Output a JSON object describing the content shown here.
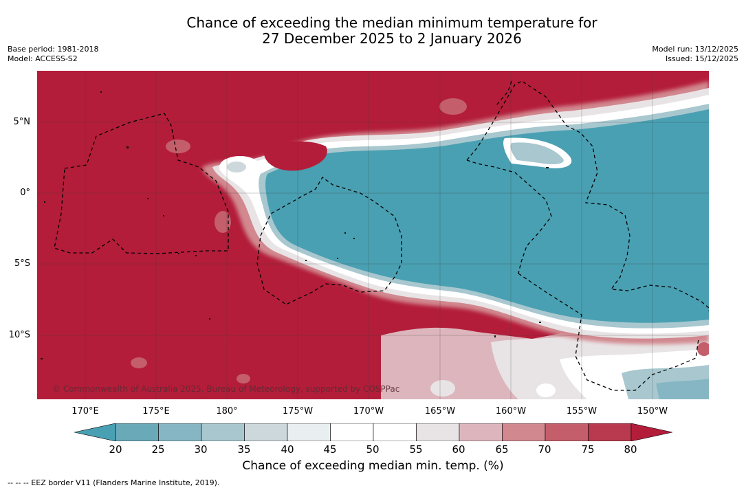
{
  "header": {
    "title_line1": "Chance of exceeding the median minimum temperature for",
    "title_line2": "27 December 2025 to 2 January 2026",
    "base_period": "Base period: 1981-2018",
    "model": "Model: ACCESS-S2",
    "model_run": "Model run: 13/12/2025",
    "issued": "Issued: 15/12/2025"
  },
  "map": {
    "lat_labels": [
      "5°N",
      "0°",
      "5°S",
      "10°S"
    ],
    "lon_labels": [
      "170°E",
      "175°E",
      "180°",
      "175°W",
      "170°W",
      "165°W",
      "160°W",
      "155°W",
      "150°W"
    ],
    "copyright": "© Commonwealth of Australia 2025, Bureau of Meteorology, supported by COSPPac",
    "colors": {
      "high": "#b31d3a",
      "low": "#49a0b2",
      "ocean_line": "#333333"
    }
  },
  "legend": {
    "ticks": [
      "20",
      "25",
      "30",
      "35",
      "40",
      "45",
      "50",
      "55",
      "60",
      "65",
      "70",
      "75",
      "80"
    ],
    "colors": [
      "#49a0b2",
      "#69a9b8",
      "#86b6c3",
      "#a8c7cf",
      "#ccd8dc",
      "#e9eef0",
      "#ffffff",
      "#ffffff",
      "#e8e4e5",
      "#ddb6bd",
      "#d1888f",
      "#c45e6b",
      "#b93a4f",
      "#b31d3a"
    ],
    "title": "Chance of exceeding median min. temp. (%)"
  },
  "footer": {
    "eez_note": "--  --  -- EEZ border V11 (Flanders Marine Institute, 2019)."
  }
}
